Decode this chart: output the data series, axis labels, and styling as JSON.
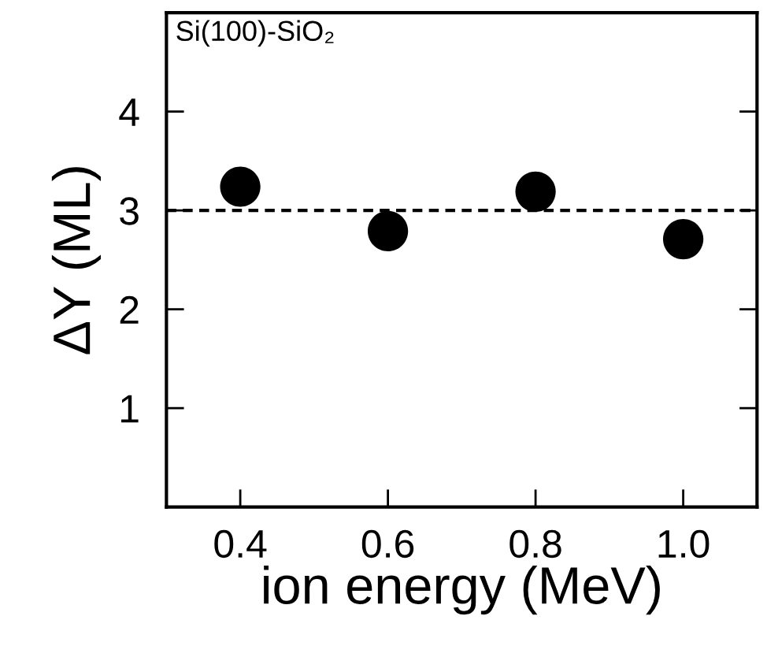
{
  "chart_data": {
    "type": "scatter",
    "title": "Si(100)-SiO₂",
    "xlabel": "ion energy (MeV)",
    "ylabel": "ΔY (ML)",
    "x": [
      0.4,
      0.6,
      0.8,
      1.0
    ],
    "series": [
      {
        "color": "#000000",
        "values": [
          3.24,
          2.79,
          3.19,
          2.71
        ]
      }
    ],
    "marker": "circle",
    "xlim": [
      0.3,
      1.1
    ],
    "xticks": [
      {
        "value": 0.4,
        "label": "0.4"
      },
      {
        "value": 0.6,
        "label": "0.6"
      },
      {
        "value": 0.8,
        "label": "0.8"
      },
      {
        "value": 1.0,
        "label": "1.0"
      }
    ],
    "ylim": [
      0,
      5
    ],
    "yticks": [
      1,
      2,
      3,
      4
    ],
    "ref_lines": [
      {
        "axis": "y",
        "value": 3.0,
        "color": "#000000",
        "line_style": "dashed"
      }
    ],
    "grid": false,
    "legend": false
  }
}
